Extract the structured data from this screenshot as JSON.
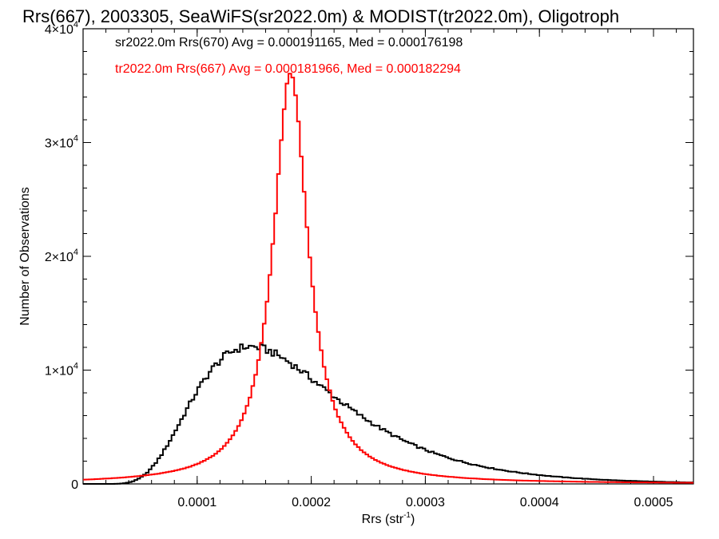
{
  "chart_data": {
    "type": "histogram-step",
    "title": "Rrs(667), 2003305, SeaWiFS(sr2022.0m) & MODIST(tr2022.0m), Oligotroph",
    "xlabel": "Rrs (str",
    "xlabel_sup": "-1",
    "xlabel_close": ")",
    "ylabel": "Number of Observations",
    "xlim": [
      0.0,
      0.000535
    ],
    "ylim": [
      0,
      40000
    ],
    "x_ticks": [
      {
        "value": 0.0001,
        "label": "0.0001"
      },
      {
        "value": 0.0002,
        "label": "0.0002"
      },
      {
        "value": 0.0003,
        "label": "0.0003"
      },
      {
        "value": 0.0004,
        "label": "0.0004"
      },
      {
        "value": 0.0005,
        "label": "0.0005"
      }
    ],
    "y_ticks": [
      {
        "value": 0,
        "mantissa": "0",
        "exp": ""
      },
      {
        "value": 10000,
        "mantissa": "1×10",
        "exp": "4"
      },
      {
        "value": 20000,
        "mantissa": "2×10",
        "exp": "4"
      },
      {
        "value": 30000,
        "mantissa": "3×10",
        "exp": "4"
      },
      {
        "value": 40000,
        "mantissa": "4×10",
        "exp": "4"
      }
    ],
    "bin_width": 2.5e-06,
    "series": [
      {
        "name": "sr2022.0m Rrs(670)",
        "color": "#000000",
        "annotation": "sr2022.0m Rrs(670) Avg = 0.000191165, Med = 0.000176198",
        "mode": "lognormal",
        "median": 0.000176,
        "sigma": 0.43,
        "peak": 11600,
        "x_at_peak": 0.000165
      },
      {
        "name": "tr2022.0m Rrs(667)",
        "color": "#ff0000",
        "annotation": "tr2022.0m Rrs(667) Avg = 0.000181966, Med = 0.000182294",
        "mode": "lorentzian",
        "center": 0.000182,
        "gamma": 1.85e-05,
        "peak": 36200
      }
    ]
  }
}
